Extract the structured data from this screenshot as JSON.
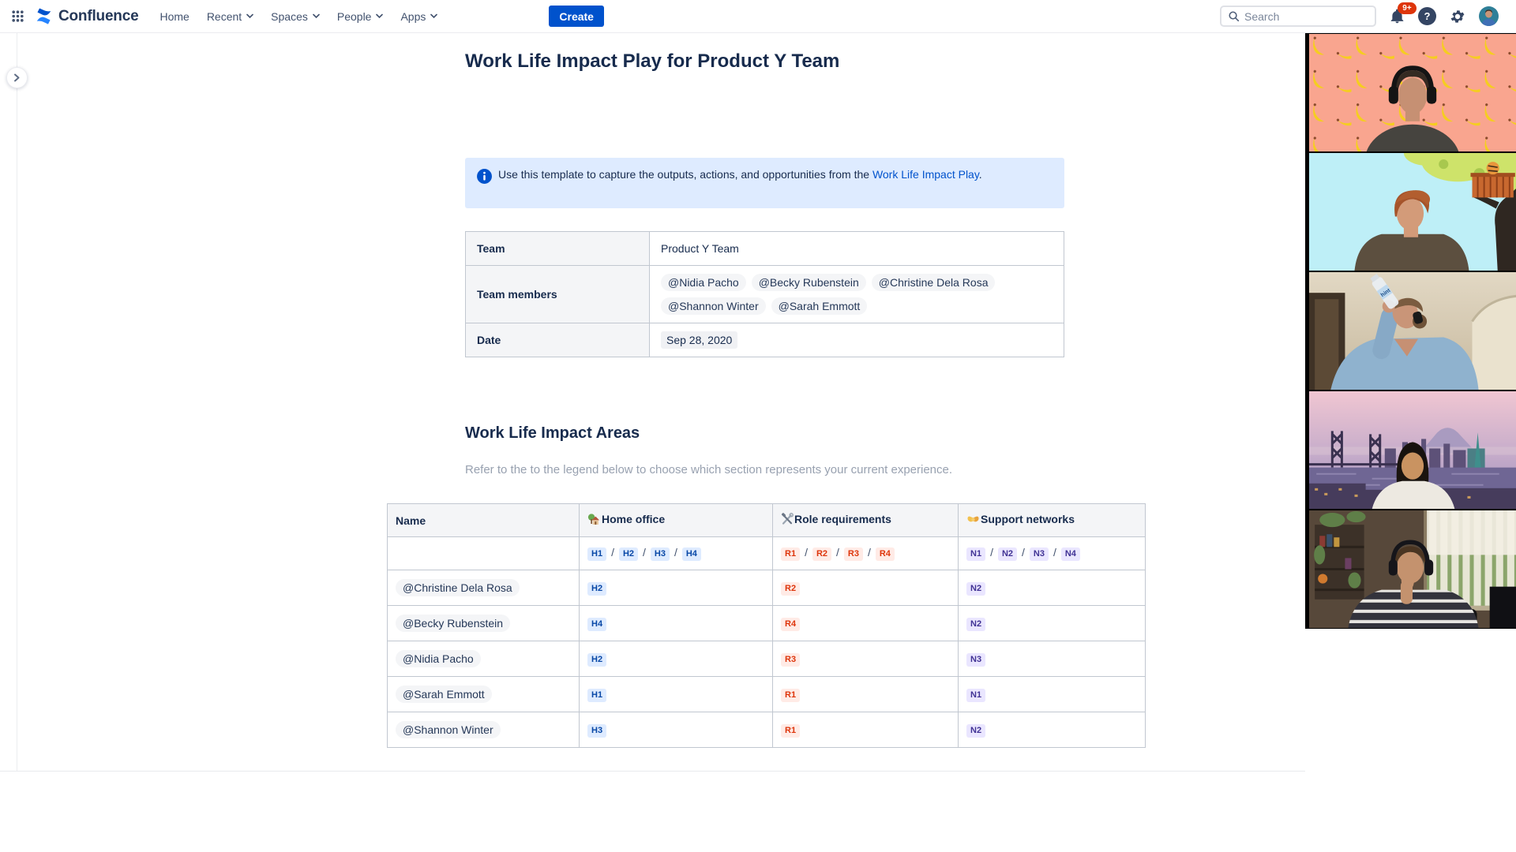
{
  "colors": {
    "accent_blue": "#0052CC",
    "info_panel_bg": "#DEEBFF",
    "lozenge_blue": {
      "bg": "#DEEBFF",
      "text": "#0747A6"
    },
    "lozenge_red": {
      "bg": "#FFEBE6",
      "text": "#DE350B"
    },
    "lozenge_purple": {
      "bg": "#EAE6FF",
      "text": "#403294"
    },
    "notification_badge_bg": "#DE350B"
  },
  "nav": {
    "brand": "Confluence",
    "items": [
      {
        "label": "Home",
        "chevron": false
      },
      {
        "label": "Recent",
        "chevron": true
      },
      {
        "label": "Spaces",
        "chevron": true
      },
      {
        "label": "People",
        "chevron": true
      },
      {
        "label": "Apps",
        "chevron": true
      }
    ],
    "create_label": "Create",
    "search_placeholder": "Search",
    "notification_badge": "9+",
    "help_glyph": "?"
  },
  "page": {
    "title": "Work Life Impact Play for Product Y Team",
    "info_panel": {
      "text_before_link": "Use this template to capture the outputs, actions, and opportunities from the ",
      "link_text": "Work Life Impact Play",
      "text_after_link": "."
    },
    "team_table": {
      "rows": [
        {
          "label": "Team",
          "type": "text",
          "value": "Product Y Team"
        },
        {
          "label": "Team members",
          "type": "mentions",
          "mentions": [
            "@Nidia Pacho",
            "@Becky Rubenstein",
            "@Christine Dela Rosa",
            "@Shannon Winter",
            "@Sarah Emmott"
          ]
        },
        {
          "label": "Date",
          "type": "date",
          "value": "Sep 28, 2020"
        }
      ]
    },
    "section": {
      "heading": "Work Life Impact Areas",
      "subtext": "Refer to the to the legend below to choose which section represents your current experience."
    },
    "impact_table": {
      "columns": [
        {
          "label": "Name",
          "icon": null,
          "key": "name"
        },
        {
          "label": "Home office",
          "icon": "house-icon",
          "key": "home",
          "lozenge": "blue"
        },
        {
          "label": "Role requirements",
          "icon": "tools-icon",
          "key": "role",
          "lozenge": "red"
        },
        {
          "label": "Support networks",
          "icon": "handshake-icon",
          "key": "network",
          "lozenge": "purple"
        }
      ],
      "legend_separator": "/",
      "legend": {
        "home": [
          "H1",
          "H2",
          "H3",
          "H4"
        ],
        "role": [
          "R1",
          "R2",
          "R3",
          "R4"
        ],
        "network": [
          "N1",
          "N2",
          "N3",
          "N4"
        ]
      },
      "rows": [
        {
          "name": "@Christine Dela Rosa",
          "home": "H2",
          "role": "R2",
          "network": "N2"
        },
        {
          "name": "@Becky Rubenstein",
          "home": "H4",
          "role": "R4",
          "network": "N2"
        },
        {
          "name": "@Nidia Pacho",
          "home": "H2",
          "role": "R3",
          "network": "N3"
        },
        {
          "name": "@Sarah Emmott",
          "home": "H1",
          "role": "R1",
          "network": "N1"
        },
        {
          "name": "@Shannon Winter",
          "home": "H3",
          "role": "R1",
          "network": "N2"
        }
      ]
    }
  },
  "video_call": {
    "participants": [
      {
        "scene": "banana-pattern-background"
      },
      {
        "scene": "cartoon-treehouse-background"
      },
      {
        "scene": "drinking-from-bottle",
        "bottle_label": "hint"
      },
      {
        "scene": "city-skyline-dusk-background"
      },
      {
        "scene": "home-office-window-blinds"
      }
    ]
  }
}
